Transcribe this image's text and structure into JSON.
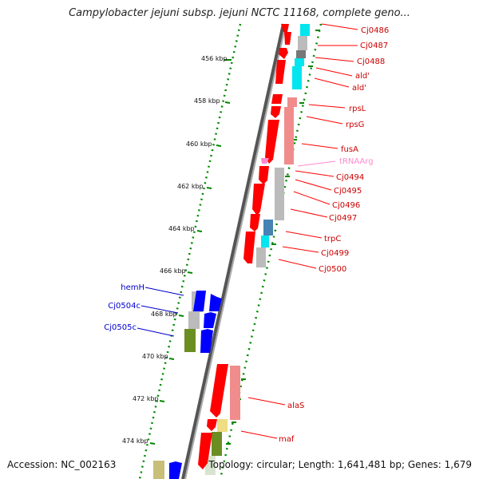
{
  "title": "Campylobacter jejuni subsp. jejuni NCTC 11168, complete geno...",
  "footer": {
    "accession": "Accession: NC_002163",
    "info": "Topology: circular; Length: 1,641,481 bp; Genes: 1,679"
  },
  "colors": {
    "reverse_gene": "#ff0000",
    "forward_gene": "#0000ff",
    "trna": "#ff88cc",
    "ticks": "#008800",
    "backbone": "#777777",
    "cog_cyan": "#00e5ee",
    "cog_gray": "#bbbbbb",
    "cog_pink": "#f08c8c",
    "cog_olive": "#6b8e23",
    "cog_steel": "#4682b4",
    "cog_khaki": "#eedd82",
    "cog_darkgray": "#777777"
  },
  "kbp_labels": [
    "456 kbp",
    "458 kbp",
    "460 kbp",
    "462 kbp",
    "464 kbp",
    "466 kbp",
    "468 kbp",
    "470 kbp",
    "472 kbp",
    "474 kbp"
  ],
  "genes_reverse": [
    "Cj0486",
    "Cj0487",
    "Cj0488",
    "ald'",
    "ald'",
    "rpsL",
    "rpsG",
    "fusA",
    "Cj0494",
    "Cj0495",
    "Cj0496",
    "Cj0497",
    "trpC",
    "Cj0499",
    "Cj0500",
    "alaS",
    "maf"
  ],
  "genes_forward": [
    "hemH",
    "Cj0504c",
    "Cj0505c"
  ],
  "trna_label": "tRNAArg"
}
